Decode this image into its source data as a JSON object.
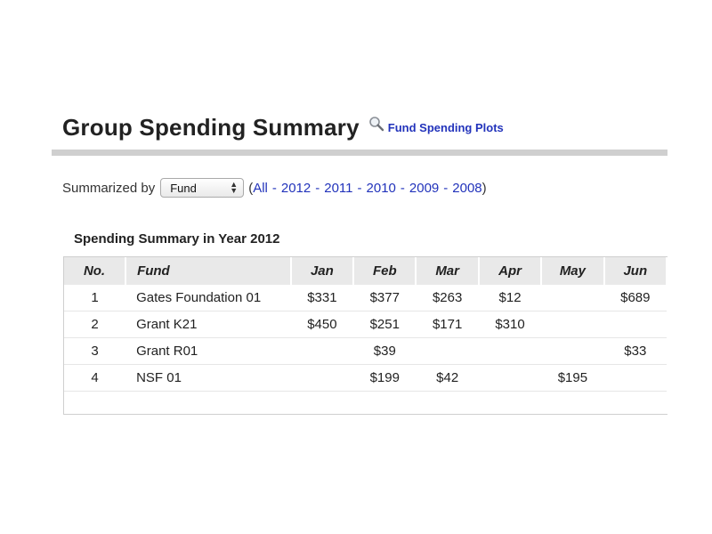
{
  "header": {
    "title": "Group Spending Summary",
    "plots_link_label": "Fund Spending Plots",
    "plots_icon": "magnifier-icon"
  },
  "filter": {
    "label": "Summarized by",
    "select_value": "Fund",
    "open_paren": "(",
    "close_paren": ")",
    "links": [
      "All",
      "2012",
      "2011",
      "2010",
      "2009",
      "2008"
    ],
    "separator": "-"
  },
  "table": {
    "caption": "Spending Summary in Year 2012",
    "columns": [
      "No.",
      "Fund",
      "Jan",
      "Feb",
      "Mar",
      "Apr",
      "May",
      "Jun"
    ],
    "rows": [
      [
        "1",
        "Gates Foundation 01",
        "$331",
        "$377",
        "$263",
        "$12",
        "",
        "$689"
      ],
      [
        "2",
        "Grant K21",
        "$450",
        "$251",
        "$171",
        "$310",
        "",
        ""
      ],
      [
        "3",
        "Grant R01",
        "",
        "$39",
        "",
        "",
        "",
        "$33"
      ],
      [
        "4",
        "NSF 01",
        "",
        "$199",
        "$42",
        "",
        "$195",
        ""
      ]
    ]
  },
  "colors": {
    "link": "#2233bb",
    "header_bg": "#e9e9e9",
    "divider": "#cfcfcf"
  }
}
